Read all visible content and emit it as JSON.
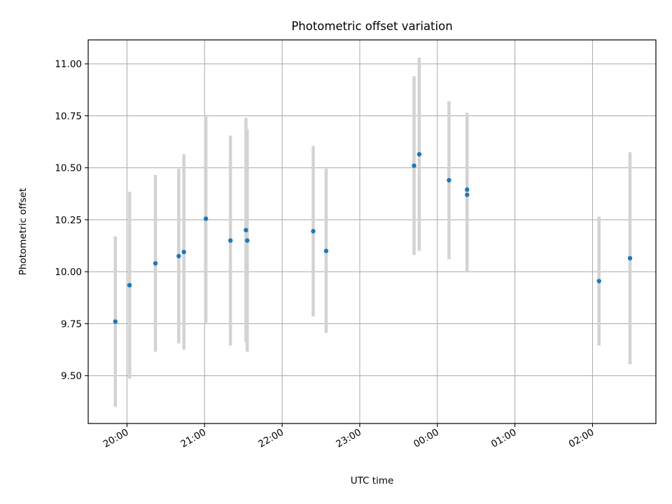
{
  "chart_data": {
    "type": "scatter",
    "title": "Photometric offset variation",
    "xlabel": "UTC time",
    "ylabel": "Photometric offset",
    "x_ticks": [
      "20:00",
      "21:00",
      "22:00",
      "23:00",
      "00:00",
      "01:00",
      "02:00"
    ],
    "x_tick_hours": [
      20,
      21,
      22,
      23,
      24,
      25,
      26
    ],
    "xlim_hours": [
      19.5,
      26.8167
    ],
    "y_ticks": [
      9.5,
      9.75,
      10.0,
      10.25,
      10.5,
      10.75,
      11.0
    ],
    "y_tick_labels": [
      "9.50",
      "9.75",
      "10.00",
      "10.25",
      "10.50",
      "10.75",
      "11.00"
    ],
    "ylim": [
      9.27,
      11.115
    ],
    "grid": true,
    "legend": "none",
    "marker_color": "#1f77b4",
    "errorbar_color": "#d3d3d3",
    "points": [
      {
        "time_hours": 19.85,
        "y": 9.76,
        "err": 0.41
      },
      {
        "time_hours": 20.0333,
        "y": 9.935,
        "err": 0.45
      },
      {
        "time_hours": 20.3667,
        "y": 10.04,
        "err": 0.425
      },
      {
        "time_hours": 20.6667,
        "y": 10.075,
        "err": 0.42
      },
      {
        "time_hours": 20.7333,
        "y": 10.095,
        "err": 0.47
      },
      {
        "time_hours": 21.0167,
        "y": 10.255,
        "err": 0.5
      },
      {
        "time_hours": 21.3333,
        "y": 10.15,
        "err": 0.505
      },
      {
        "time_hours": 21.5333,
        "y": 10.2,
        "err": 0.54
      },
      {
        "time_hours": 21.55,
        "y": 10.15,
        "err": 0.535
      },
      {
        "time_hours": 22.4,
        "y": 10.195,
        "err": 0.41
      },
      {
        "time_hours": 22.5667,
        "y": 10.1,
        "err": 0.395
      },
      {
        "time_hours": 23.7,
        "y": 10.51,
        "err": 0.43
      },
      {
        "time_hours": 23.7667,
        "y": 10.565,
        "err": 0.465
      },
      {
        "time_hours": 24.15,
        "y": 10.44,
        "err": 0.38
      },
      {
        "time_hours": 24.3833,
        "y": 10.395,
        "err": 0.37
      },
      {
        "time_hours": 24.3833,
        "y": 10.37,
        "err": 0.37
      },
      {
        "time_hours": 26.0833,
        "y": 9.955,
        "err": 0.31
      },
      {
        "time_hours": 26.4833,
        "y": 10.065,
        "err": 0.51
      }
    ]
  }
}
